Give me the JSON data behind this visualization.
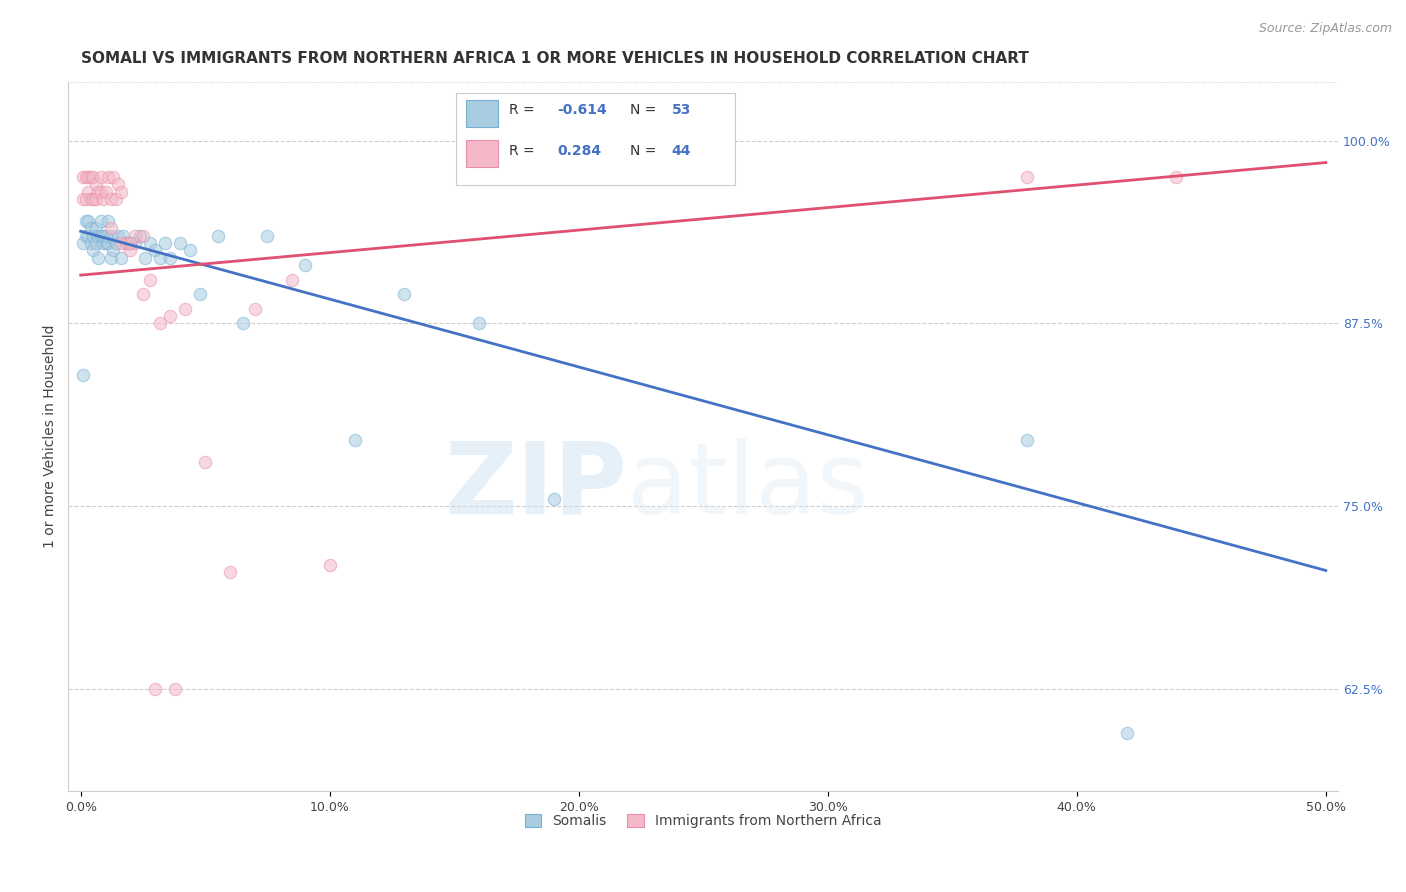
{
  "title": "SOMALI VS IMMIGRANTS FROM NORTHERN AFRICA 1 OR MORE VEHICLES IN HOUSEHOLD CORRELATION CHART",
  "source": "Source: ZipAtlas.com",
  "xlabel_ticks": [
    "0.0%",
    "10.0%",
    "20.0%",
    "30.0%",
    "40.0%",
    "50.0%"
  ],
  "xlabel_vals": [
    0.0,
    0.1,
    0.2,
    0.3,
    0.4,
    0.5
  ],
  "ylabel_ticks": [
    "62.5%",
    "75.0%",
    "87.5%",
    "100.0%"
  ],
  "ylabel_vals": [
    0.625,
    0.75,
    0.875,
    1.0
  ],
  "ylabel_label": "1 or more Vehicles in Household",
  "ylim": [
    0.555,
    1.04
  ],
  "xlim": [
    -0.005,
    0.505
  ],
  "blue_color": "#a8cce0",
  "pink_color": "#f4b8c8",
  "blue_edge_color": "#7aafd4",
  "pink_edge_color": "#e890a8",
  "blue_line_color": "#4472c4",
  "pink_line_color": "#e05070",
  "legend_label_blue": "Somalis",
  "legend_label_pink": "Immigrants from Northern Africa",
  "watermark_zip": "ZIP",
  "watermark_atlas": "atlas",
  "blue_scatter_x": [
    0.001,
    0.002,
    0.002,
    0.003,
    0.003,
    0.004,
    0.004,
    0.005,
    0.005,
    0.006,
    0.006,
    0.007,
    0.007,
    0.008,
    0.008,
    0.009,
    0.009,
    0.01,
    0.01,
    0.011,
    0.011,
    0.012,
    0.012,
    0.013,
    0.014,
    0.015,
    0.016,
    0.017,
    0.018,
    0.019,
    0.02,
    0.022,
    0.024,
    0.026,
    0.028,
    0.03,
    0.032,
    0.034,
    0.036,
    0.04,
    0.044,
    0.048,
    0.055,
    0.065,
    0.075,
    0.09,
    0.11,
    0.13,
    0.16,
    0.19,
    0.001,
    0.38,
    0.42
  ],
  "blue_scatter_y": [
    0.93,
    0.935,
    0.945,
    0.935,
    0.945,
    0.94,
    0.93,
    0.925,
    0.935,
    0.94,
    0.93,
    0.935,
    0.92,
    0.935,
    0.945,
    0.93,
    0.935,
    0.93,
    0.935,
    0.93,
    0.945,
    0.92,
    0.935,
    0.925,
    0.93,
    0.935,
    0.92,
    0.935,
    0.93,
    0.93,
    0.93,
    0.93,
    0.935,
    0.92,
    0.93,
    0.925,
    0.92,
    0.93,
    0.92,
    0.93,
    0.925,
    0.895,
    0.935,
    0.875,
    0.935,
    0.915,
    0.795,
    0.895,
    0.875,
    0.755,
    0.84,
    0.795,
    0.595
  ],
  "pink_scatter_x": [
    0.001,
    0.001,
    0.002,
    0.002,
    0.003,
    0.003,
    0.004,
    0.004,
    0.005,
    0.005,
    0.006,
    0.006,
    0.007,
    0.008,
    0.008,
    0.009,
    0.01,
    0.011,
    0.012,
    0.013,
    0.014,
    0.015,
    0.016,
    0.018,
    0.02,
    0.022,
    0.025,
    0.028,
    0.032,
    0.036,
    0.042,
    0.05,
    0.06,
    0.07,
    0.085,
    0.1,
    0.012,
    0.016,
    0.02,
    0.025,
    0.03,
    0.038,
    0.38,
    0.44
  ],
  "pink_scatter_y": [
    0.975,
    0.96,
    0.975,
    0.96,
    0.975,
    0.965,
    0.975,
    0.96,
    0.975,
    0.96,
    0.97,
    0.96,
    0.965,
    0.975,
    0.965,
    0.96,
    0.965,
    0.975,
    0.96,
    0.975,
    0.96,
    0.97,
    0.965,
    0.93,
    0.925,
    0.935,
    0.895,
    0.905,
    0.875,
    0.88,
    0.885,
    0.78,
    0.705,
    0.885,
    0.905,
    0.71,
    0.94,
    0.93,
    0.93,
    0.935,
    0.625,
    0.625,
    0.975,
    0.975
  ],
  "blue_line_x0": 0.0,
  "blue_line_x1": 0.5,
  "blue_line_y0": 0.938,
  "blue_line_y1": 0.706,
  "pink_line_x0": 0.0,
  "pink_line_x1": 0.5,
  "pink_line_y0": 0.908,
  "pink_line_y1": 0.985,
  "title_fontsize": 11,
  "source_fontsize": 9,
  "axis_label_fontsize": 10,
  "tick_fontsize": 9,
  "marker_size": 80,
  "alpha": 0.55,
  "background_color": "#ffffff",
  "grid_color": "#d0d0d0",
  "right_tick_color": "#4472c4",
  "legend_R_blue_text": "R = ",
  "legend_R_blue_val": "-0.614",
  "legend_N_blue_text": "N = ",
  "legend_N_blue_val": "53",
  "legend_R_pink_text": "R =  ",
  "legend_R_pink_val": "0.284",
  "legend_N_pink_text": "N = ",
  "legend_N_pink_val": "44"
}
